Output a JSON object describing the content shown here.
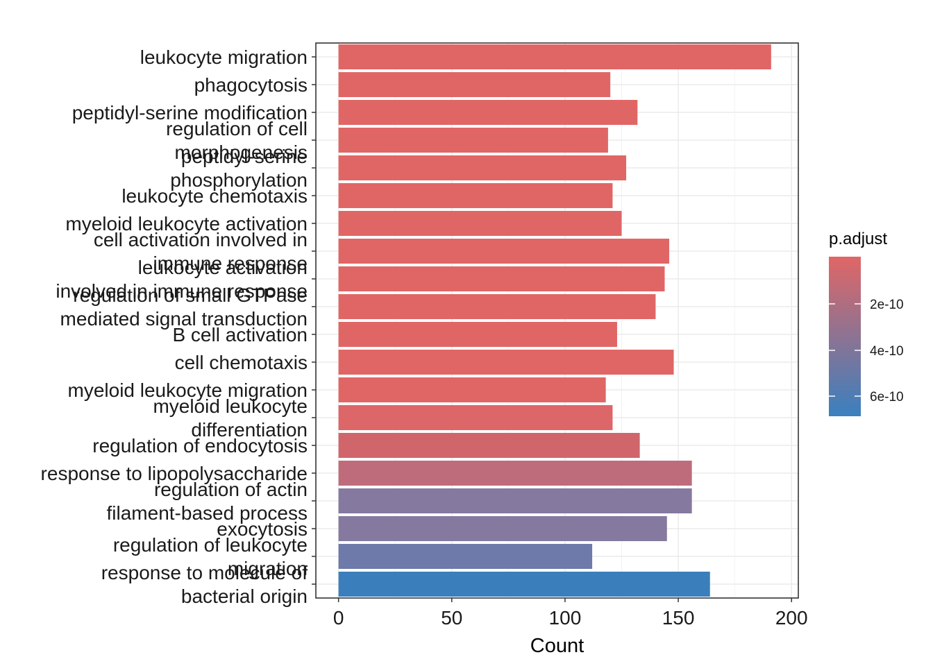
{
  "chart_data": {
    "type": "bar",
    "orientation": "horizontal",
    "xlabel": "Count",
    "xlim": [
      0,
      200
    ],
    "x_ticks": [
      0,
      50,
      100,
      150,
      200
    ],
    "grid": true,
    "categories": [
      [
        "leukocyte migration"
      ],
      [
        "phagocytosis"
      ],
      [
        "peptidyl-serine modification"
      ],
      [
        "regulation of cell",
        "morphogenesis"
      ],
      [
        "peptidyl-serine",
        "phosphorylation"
      ],
      [
        "leukocyte chemotaxis"
      ],
      [
        "myeloid leukocyte activation"
      ],
      [
        "cell activation involved in",
        "immune response"
      ],
      [
        "leukocyte activation",
        "involved in immune response"
      ],
      [
        "regulation of small GTPase",
        "mediated signal transduction"
      ],
      [
        "B cell activation"
      ],
      [
        "cell chemotaxis"
      ],
      [
        "myeloid leukocyte migration"
      ],
      [
        "myeloid leukocyte",
        "differentiation"
      ],
      [
        "regulation of endocytosis"
      ],
      [
        "response to lipopolysaccharide"
      ],
      [
        "regulation of actin",
        "filament-based process"
      ],
      [
        "exocytosis"
      ],
      [
        "regulation of leukocyte",
        "migration"
      ],
      [
        "response to molecule of",
        "bacterial origin"
      ]
    ],
    "values": [
      191,
      120,
      132,
      119,
      127,
      121,
      125,
      146,
      144,
      140,
      123,
      148,
      118,
      121,
      133,
      156,
      156,
      145,
      112,
      164
    ],
    "bar_colors": [
      "#E06666",
      "#E06666",
      "#E06666",
      "#E06666",
      "#E06666",
      "#E06666",
      "#E06666",
      "#E06666",
      "#E06666",
      "#E06666",
      "#E06666",
      "#E06666",
      "#E06666",
      "#DC6668",
      "#D0666C",
      "#BE6C7C",
      "#85799F",
      "#85799F",
      "#6D7AAA",
      "#3A7FBB"
    ],
    "legend": {
      "title": "p.adjust",
      "position": "right",
      "gradient_colors": [
        "#E06666",
        "#3A80BF"
      ],
      "tick_labels": [
        "2e-10",
        "4e-10",
        "6e-10"
      ]
    }
  }
}
